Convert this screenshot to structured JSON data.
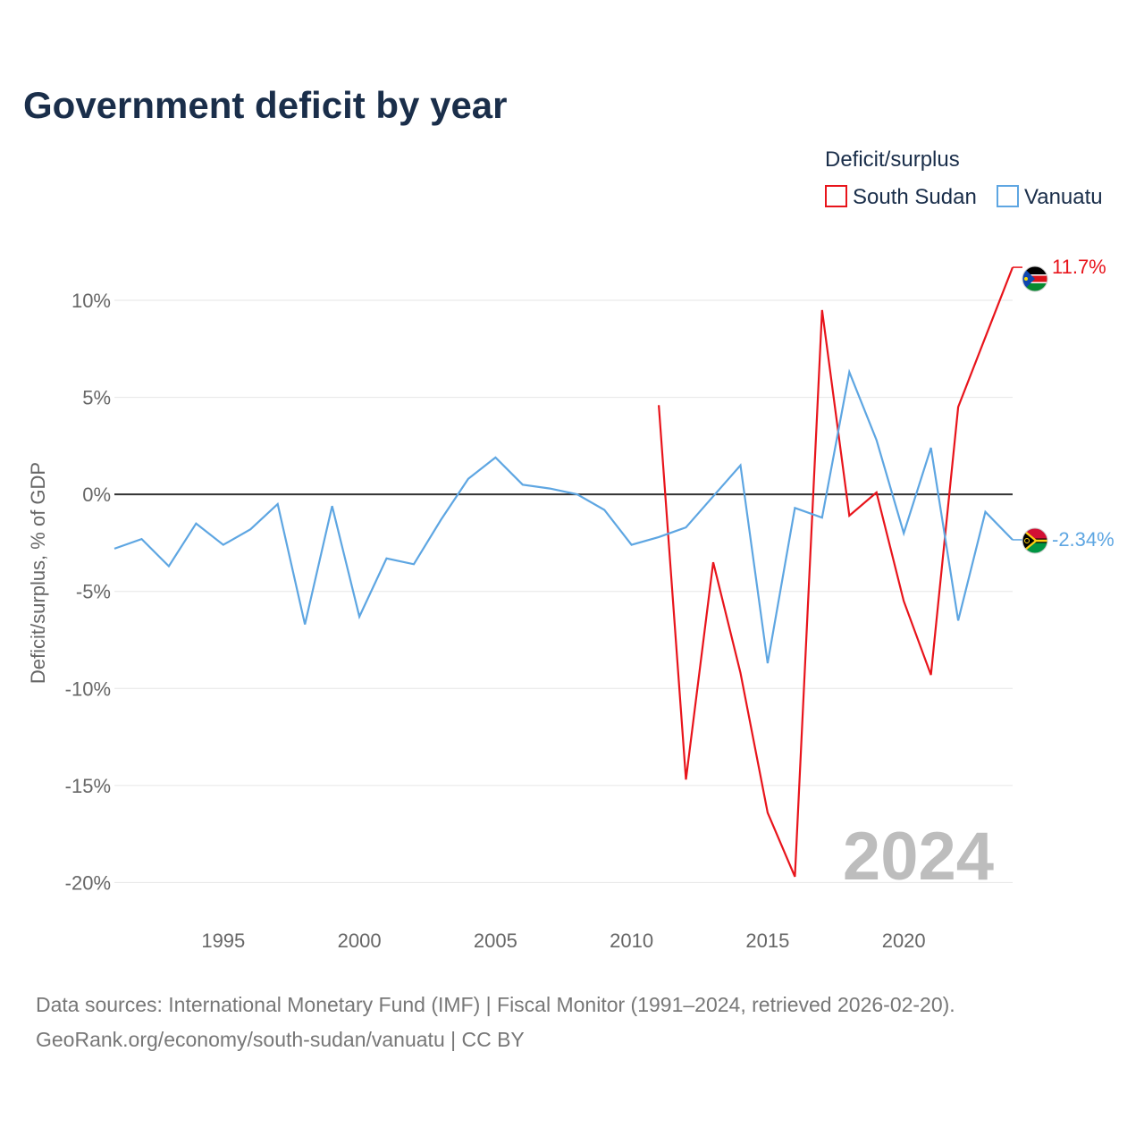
{
  "chart_data": {
    "type": "line",
    "title": "Government deficit by year",
    "ylabel": "Deficit/surplus, % of GDP",
    "xlabel": "",
    "xlim": [
      1991,
      2024
    ],
    "ylim": [
      -21.5,
      13.5
    ],
    "x_ticks": [
      {
        "value": 1995,
        "label": "1995"
      },
      {
        "value": 2000,
        "label": "2000"
      },
      {
        "value": 2005,
        "label": "2005"
      },
      {
        "value": 2010,
        "label": "2010"
      },
      {
        "value": 2015,
        "label": "2015"
      },
      {
        "value": 2020,
        "label": "2020"
      }
    ],
    "y_ticks": [
      {
        "value": 10,
        "label": "10%"
      },
      {
        "value": 5,
        "label": "5%"
      },
      {
        "value": 0,
        "label": "0%"
      },
      {
        "value": -5,
        "label": "-5%"
      },
      {
        "value": -10,
        "label": "-10%"
      },
      {
        "value": -15,
        "label": "-15%"
      },
      {
        "value": -20,
        "label": "-20%"
      }
    ],
    "legend": {
      "title": "Deficit/surplus",
      "position": "top-right"
    },
    "current_year": "2024",
    "series": [
      {
        "name": "South Sudan",
        "color": "#e8141b",
        "end_label": "11.7%",
        "flag_icon": "south-sudan-flag-icon",
        "points": [
          {
            "x": 2011,
            "y": 4.6
          },
          {
            "x": 2012,
            "y": -14.7
          },
          {
            "x": 2013,
            "y": -3.5
          },
          {
            "x": 2014,
            "y": -9.2
          },
          {
            "x": 2015,
            "y": -16.4
          },
          {
            "x": 2016,
            "y": -19.7
          },
          {
            "x": 2017,
            "y": 9.5
          },
          {
            "x": 2018,
            "y": -1.1
          },
          {
            "x": 2019,
            "y": 0.1
          },
          {
            "x": 2020,
            "y": -5.5
          },
          {
            "x": 2021,
            "y": -9.3
          },
          {
            "x": 2022,
            "y": 4.5
          },
          {
            "x": 2023,
            "y": 8.1
          },
          {
            "x": 2024,
            "y": 11.7
          }
        ]
      },
      {
        "name": "Vanuatu",
        "color": "#5ea6e2",
        "end_label": "-2.34%",
        "flag_icon": "vanuatu-flag-icon",
        "points": [
          {
            "x": 1991,
            "y": -2.8
          },
          {
            "x": 1992,
            "y": -2.3
          },
          {
            "x": 1993,
            "y": -3.7
          },
          {
            "x": 1994,
            "y": -1.5
          },
          {
            "x": 1995,
            "y": -2.6
          },
          {
            "x": 1996,
            "y": -1.8
          },
          {
            "x": 1997,
            "y": -0.5
          },
          {
            "x": 1998,
            "y": -6.7
          },
          {
            "x": 1999,
            "y": -0.6
          },
          {
            "x": 2000,
            "y": -6.3
          },
          {
            "x": 2001,
            "y": -3.3
          },
          {
            "x": 2002,
            "y": -3.6
          },
          {
            "x": 2003,
            "y": -1.3
          },
          {
            "x": 2004,
            "y": 0.8
          },
          {
            "x": 2005,
            "y": 1.9
          },
          {
            "x": 2006,
            "y": 0.5
          },
          {
            "x": 2007,
            "y": 0.3
          },
          {
            "x": 2008,
            "y": 0.0
          },
          {
            "x": 2009,
            "y": -0.8
          },
          {
            "x": 2010,
            "y": -2.6
          },
          {
            "x": 2011,
            "y": -2.2
          },
          {
            "x": 2012,
            "y": -1.7
          },
          {
            "x": 2013,
            "y": -0.1
          },
          {
            "x": 2014,
            "y": 1.5
          },
          {
            "x": 2015,
            "y": -8.7
          },
          {
            "x": 2016,
            "y": -0.7
          },
          {
            "x": 2017,
            "y": -1.2
          },
          {
            "x": 2018,
            "y": 6.3
          },
          {
            "x": 2019,
            "y": 2.8
          },
          {
            "x": 2020,
            "y": -2.0
          },
          {
            "x": 2021,
            "y": 2.4
          },
          {
            "x": 2022,
            "y": -6.5
          },
          {
            "x": 2023,
            "y": -0.9
          },
          {
            "x": 2024,
            "y": -2.34
          }
        ]
      }
    ]
  },
  "footer": {
    "source_line": "Data sources: International Monetary Fund (IMF) | Fiscal Monitor (1991–2024, retrieved 2026-02-20).",
    "credit_line": "GeoRank.org/economy/south-sudan/vanuatu | CC BY"
  }
}
